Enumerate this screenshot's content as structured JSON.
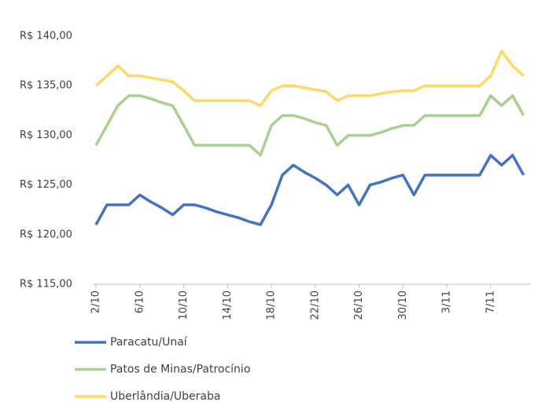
{
  "chart_data": {
    "type": "line",
    "categories": [
      "2/10",
      null,
      null,
      null,
      "6/10",
      null,
      null,
      null,
      "10/10",
      null,
      null,
      null,
      "14/10",
      null,
      null,
      null,
      "18/10",
      null,
      null,
      null,
      "22/10",
      null,
      null,
      null,
      "26/10",
      null,
      null,
      null,
      "30/10",
      null,
      null,
      null,
      "3/11",
      null,
      null,
      null,
      "7/11",
      null,
      null,
      null
    ],
    "series": [
      {
        "name": "Paracatu/Unaí",
        "color": "#4472c4",
        "values": [
          121,
          123,
          123,
          123,
          124,
          123.3,
          122.7,
          122,
          123,
          123,
          122.7,
          122.3,
          122,
          121.7,
          121.3,
          121,
          123,
          126,
          127,
          126.3,
          125.7,
          125,
          124,
          125,
          123,
          125,
          125.3,
          125.7,
          126,
          124,
          126,
          126,
          126,
          126,
          126,
          126,
          128,
          127,
          128,
          126
        ]
      },
      {
        "name": "Patos de Minas/Patrocínio",
        "color": "#a9d18e",
        "values": [
          129,
          131,
          133,
          134,
          134,
          133.7,
          133.3,
          133,
          131,
          129,
          129,
          129,
          129,
          129,
          129,
          128,
          131,
          132,
          132,
          131.7,
          131.3,
          131,
          129,
          130,
          130,
          130,
          130.3,
          130.7,
          131,
          131,
          132,
          132,
          132,
          132,
          132,
          132,
          134,
          133,
          134,
          132
        ]
      },
      {
        "name": "Uberlândia/Uberaba",
        "color": "#ffd966",
        "values": [
          135,
          136,
          137,
          136,
          136,
          135.8,
          135.6,
          135.4,
          134.5,
          133.5,
          133.5,
          133.5,
          133.5,
          133.5,
          133.5,
          133,
          134.5,
          135,
          135,
          134.8,
          134.6,
          134.4,
          133.5,
          134,
          134,
          134,
          134.2,
          134.4,
          134.5,
          134.5,
          135,
          135,
          135,
          135,
          135,
          135,
          136,
          138.5,
          137,
          136
        ]
      }
    ],
    "ylim": [
      115,
      140
    ],
    "yticks": [
      {
        "value": 115,
        "label": "R$ 115,00"
      },
      {
        "value": 120,
        "label": "R$ 120,00"
      },
      {
        "value": 125,
        "label": "R$ 125,00"
      },
      {
        "value": 130,
        "label": "R$ 130,00"
      },
      {
        "value": 135,
        "label": "R$ 135,00"
      },
      {
        "value": 140,
        "label": "R$ 140,00"
      }
    ],
    "grid": false
  }
}
